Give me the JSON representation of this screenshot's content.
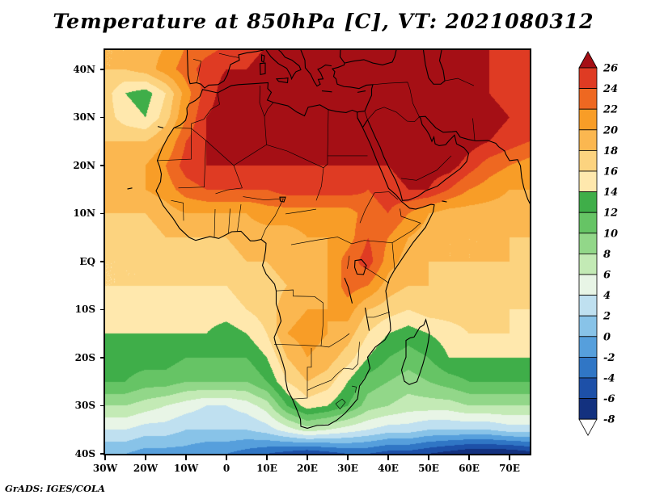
{
  "title": "Temperature at 850hPa [C], VT: 2021080312",
  "footer": "GrADS: IGES/COLA",
  "axes": {
    "lat_ticks": [
      {
        "label": "40N",
        "value": 40
      },
      {
        "label": "30N",
        "value": 30
      },
      {
        "label": "20N",
        "value": 20
      },
      {
        "label": "10N",
        "value": 10
      },
      {
        "label": "EQ",
        "value": 0
      },
      {
        "label": "10S",
        "value": -10
      },
      {
        "label": "20S",
        "value": -20
      },
      {
        "label": "30S",
        "value": -30
      },
      {
        "label": "40S",
        "value": -40
      }
    ],
    "lon_ticks": [
      {
        "label": "30W",
        "value": -30
      },
      {
        "label": "20W",
        "value": -20
      },
      {
        "label": "10W",
        "value": -10
      },
      {
        "label": "0",
        "value": 0
      },
      {
        "label": "10E",
        "value": 10
      },
      {
        "label": "20E",
        "value": 20
      },
      {
        "label": "30E",
        "value": 30
      },
      {
        "label": "40E",
        "value": 40
      },
      {
        "label": "50E",
        "value": 50
      },
      {
        "label": "60E",
        "value": 60
      },
      {
        "label": "70E",
        "value": 70
      }
    ]
  },
  "colorbar": {
    "labels": [
      "26",
      "24",
      "22",
      "20",
      "18",
      "16",
      "14",
      "12",
      "10",
      "8",
      "6",
      "4",
      "2",
      "0",
      "-2",
      "-4",
      "-6",
      "-8"
    ],
    "position": "right"
  },
  "chart_data": {
    "type": "heatmap",
    "variable": "Temperature at 850hPa",
    "units": "C",
    "valid_time": "2021080312",
    "lon_range": [
      -30,
      75
    ],
    "lat_range": [
      -40,
      44
    ],
    "grid": true,
    "levels": [
      26,
      24,
      22,
      20,
      18,
      16,
      14,
      12,
      10,
      8,
      6,
      4,
      2,
      0,
      -2,
      -4,
      -6,
      -8
    ],
    "palette_colors": [
      "#a50f15",
      "#df3b23",
      "#ee6821",
      "#f89d27",
      "#fbb750",
      "#fcd37f",
      "#ffe8ad",
      "#3fae49",
      "#66c465",
      "#92d789",
      "#c3eab5",
      "#e8f5e6",
      "#bfe0f0",
      "#88c3e8",
      "#569fdc",
      "#3076c5",
      "#1d50a8",
      "#13317f",
      "#ffffff"
    ],
    "grid_lons": [
      -30,
      -25,
      -20,
      -15,
      -10,
      -5,
      0,
      5,
      10,
      15,
      20,
      25,
      30,
      35,
      40,
      45,
      50,
      55,
      60,
      65,
      70,
      75
    ],
    "grid_lats": [
      45,
      40,
      35,
      30,
      25,
      20,
      15,
      10,
      5,
      0,
      -5,
      -10,
      -15,
      -20,
      -25,
      -30,
      -35,
      -40
    ],
    "values": [
      [
        18,
        18,
        19,
        20,
        22,
        23,
        24,
        25,
        26,
        26,
        26,
        27,
        27,
        27,
        27,
        27,
        27,
        27,
        26,
        26,
        25,
        24
      ],
      [
        18,
        18,
        19,
        21,
        23,
        25,
        26,
        26,
        27,
        27,
        27,
        27,
        27,
        28,
        28,
        28,
        28,
        27,
        27,
        26,
        26,
        25
      ],
      [
        17,
        14,
        13,
        16,
        21,
        25,
        27,
        27,
        28,
        28,
        28,
        28,
        28,
        28,
        28,
        28,
        28,
        28,
        27,
        26,
        25,
        24
      ],
      [
        17,
        15,
        14,
        17,
        22,
        26,
        27,
        27,
        27,
        27,
        27,
        27,
        27,
        28,
        28,
        28,
        28,
        28,
        28,
        27,
        26,
        25
      ],
      [
        18,
        18,
        18,
        20,
        24,
        26,
        27,
        27,
        27,
        27,
        27,
        27,
        27,
        27,
        27,
        28,
        28,
        28,
        27,
        26,
        25,
        24
      ],
      [
        19,
        19,
        20,
        22,
        25,
        26,
        26,
        26,
        26,
        26,
        26,
        26,
        26,
        26,
        26,
        27,
        27,
        27,
        25,
        23,
        22,
        21
      ],
      [
        20,
        20,
        20,
        21,
        23,
        24,
        24,
        24,
        24,
        25,
        25,
        25,
        25,
        24,
        25,
        26,
        26,
        24,
        22,
        21,
        20,
        20
      ],
      [
        18,
        18,
        18,
        19,
        20,
        20,
        20,
        20,
        21,
        21,
        21,
        21,
        21,
        23,
        24,
        22,
        20,
        19,
        19,
        19,
        19,
        19
      ],
      [
        17,
        17,
        17,
        18,
        18,
        18,
        18,
        19,
        19,
        19,
        20,
        20,
        21,
        24,
        22,
        20,
        19,
        18,
        18,
        18,
        18,
        18
      ],
      [
        16,
        16,
        16,
        17,
        17,
        17,
        17,
        18,
        18,
        19,
        19,
        20,
        23,
        25,
        21,
        19,
        18,
        18,
        18,
        18,
        18,
        17
      ],
      [
        16,
        16,
        16,
        16,
        16,
        16,
        16,
        17,
        17,
        18,
        19,
        20,
        23,
        22,
        19,
        18,
        18,
        17,
        17,
        17,
        17,
        17
      ],
      [
        15,
        15,
        15,
        15,
        15,
        15,
        15,
        16,
        17,
        19,
        20,
        20,
        21,
        18,
        17,
        16,
        17,
        17,
        17,
        17,
        16,
        16
      ],
      [
        14,
        14,
        14,
        14,
        14,
        14,
        13,
        14,
        16,
        20,
        21,
        20,
        19,
        16,
        14,
        13,
        14,
        15,
        16,
        16,
        16,
        15
      ],
      [
        13,
        13,
        13,
        13,
        12,
        12,
        12,
        12,
        14,
        18,
        20,
        19,
        17,
        14,
        12,
        11,
        12,
        14,
        14,
        14,
        14,
        14
      ],
      [
        12,
        12,
        11,
        11,
        10,
        10,
        10,
        10,
        12,
        16,
        18,
        17,
        14,
        11,
        10,
        9,
        10,
        11,
        12,
        12,
        12,
        12
      ],
      [
        8,
        8,
        7,
        6,
        5,
        4,
        4,
        5,
        7,
        12,
        15,
        14,
        12,
        9,
        8,
        7,
        7,
        7,
        8,
        8,
        8,
        8
      ],
      [
        4,
        4,
        3,
        3,
        2,
        2,
        2,
        2,
        3,
        5,
        7,
        6,
        5,
        4,
        3,
        3,
        2,
        2,
        2,
        2,
        3,
        3
      ],
      [
        0,
        0,
        -1,
        -1,
        -1,
        -2,
        -2,
        -3,
        -4,
        -5,
        -6,
        -5,
        -4,
        -4,
        -5,
        -5,
        -6,
        -7,
        -8,
        -8,
        -8,
        -7
      ]
    ]
  }
}
